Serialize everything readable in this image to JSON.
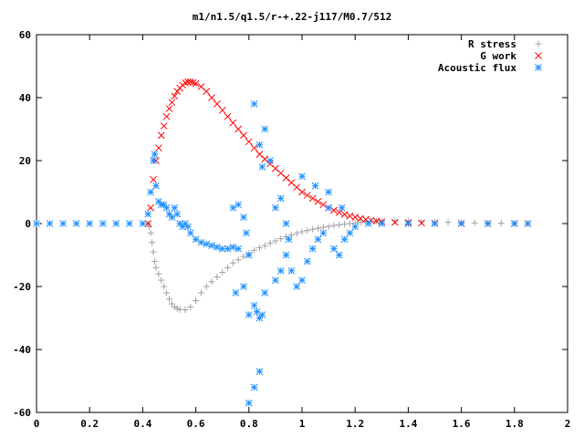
{
  "chart_data": {
    "type": "scatter",
    "title": "m1/n1.5/q1.5/r-+.22-j117/M0.7/512",
    "xlabel": "",
    "ylabel": "",
    "xlim": [
      0,
      2
    ],
    "ylim": [
      -60,
      60
    ],
    "xticks": [
      0,
      0.2,
      0.4,
      0.6,
      0.8,
      1,
      1.2,
      1.4,
      1.6,
      1.8,
      2
    ],
    "xtick_labels": [
      "0",
      "0.2",
      "0.4",
      "0.6",
      "0.8",
      "1",
      "1.2",
      "1.4",
      "1.6",
      "1.8",
      "2"
    ],
    "yticks": [
      -60,
      -40,
      -20,
      0,
      20,
      40,
      60
    ],
    "ytick_labels": [
      "-60",
      "-40",
      "-20",
      "0",
      "20",
      "40",
      "60"
    ],
    "grid": false,
    "legend_position": "top-right",
    "series": [
      {
        "name": "R stress",
        "marker": "plus",
        "color": "#a0a0a0",
        "points": [
          [
            0.42,
            0
          ],
          [
            0.425,
            -1
          ],
          [
            0.43,
            -3
          ],
          [
            0.435,
            -6
          ],
          [
            0.44,
            -9
          ],
          [
            0.445,
            -12
          ],
          [
            0.45,
            -14
          ],
          [
            0.46,
            -16
          ],
          [
            0.47,
            -18
          ],
          [
            0.48,
            -20
          ],
          [
            0.49,
            -22
          ],
          [
            0.5,
            -24
          ],
          [
            0.51,
            -25.5
          ],
          [
            0.52,
            -26.5
          ],
          [
            0.53,
            -27
          ],
          [
            0.54,
            -27.3
          ],
          [
            0.56,
            -27.4
          ],
          [
            0.58,
            -26.5
          ],
          [
            0.6,
            -24.5
          ],
          [
            0.62,
            -22
          ],
          [
            0.64,
            -20
          ],
          [
            0.66,
            -18.5
          ],
          [
            0.68,
            -17
          ],
          [
            0.7,
            -15.5
          ],
          [
            0.72,
            -14
          ],
          [
            0.74,
            -12.5
          ],
          [
            0.76,
            -11.5
          ],
          [
            0.78,
            -10.5
          ],
          [
            0.8,
            -9.5
          ],
          [
            0.82,
            -8.5
          ],
          [
            0.84,
            -7.7
          ],
          [
            0.86,
            -7
          ],
          [
            0.88,
            -6.2
          ],
          [
            0.9,
            -5.5
          ],
          [
            0.92,
            -4.8
          ],
          [
            0.94,
            -4.2
          ],
          [
            0.96,
            -3.6
          ],
          [
            0.98,
            -3.1
          ],
          [
            1.0,
            -2.6
          ],
          [
            1.02,
            -2.2
          ],
          [
            1.04,
            -1.8
          ],
          [
            1.06,
            -1.5
          ],
          [
            1.08,
            -1.2
          ],
          [
            1.1,
            -0.9
          ],
          [
            1.12,
            -0.6
          ],
          [
            1.14,
            -0.4
          ],
          [
            1.16,
            -0.2
          ],
          [
            1.18,
            0
          ],
          [
            1.2,
            0.2
          ],
          [
            1.22,
            0.4
          ],
          [
            1.24,
            0.6
          ],
          [
            1.26,
            0.7
          ],
          [
            1.28,
            0.8
          ],
          [
            1.3,
            0.8
          ],
          [
            1.35,
            0.8
          ],
          [
            1.4,
            0.7
          ],
          [
            1.45,
            0.6
          ],
          [
            1.5,
            0.5
          ],
          [
            1.55,
            0.4
          ],
          [
            1.6,
            0.3
          ],
          [
            1.65,
            0.2
          ],
          [
            1.7,
            0.15
          ],
          [
            1.75,
            0.1
          ],
          [
            1.8,
            0.05
          ],
          [
            1.85,
            0
          ]
        ]
      },
      {
        "name": "G work",
        "marker": "cross",
        "color": "#ff0000",
        "points": [
          [
            0.42,
            0
          ],
          [
            0.43,
            5
          ],
          [
            0.44,
            14
          ],
          [
            0.45,
            20
          ],
          [
            0.46,
            24
          ],
          [
            0.47,
            28
          ],
          [
            0.48,
            31
          ],
          [
            0.49,
            34
          ],
          [
            0.5,
            36.5
          ],
          [
            0.51,
            38.5
          ],
          [
            0.52,
            40.5
          ],
          [
            0.53,
            42
          ],
          [
            0.54,
            43
          ],
          [
            0.55,
            44
          ],
          [
            0.56,
            44.7
          ],
          [
            0.57,
            45
          ],
          [
            0.58,
            45
          ],
          [
            0.59,
            44.8
          ],
          [
            0.6,
            44.5
          ],
          [
            0.62,
            43.5
          ],
          [
            0.64,
            42
          ],
          [
            0.66,
            40
          ],
          [
            0.68,
            38
          ],
          [
            0.7,
            36
          ],
          [
            0.72,
            34
          ],
          [
            0.74,
            32
          ],
          [
            0.76,
            30
          ],
          [
            0.78,
            28
          ],
          [
            0.8,
            26
          ],
          [
            0.82,
            24
          ],
          [
            0.84,
            22
          ],
          [
            0.86,
            20.5
          ],
          [
            0.88,
            19
          ],
          [
            0.9,
            17.5
          ],
          [
            0.92,
            16
          ],
          [
            0.94,
            14.5
          ],
          [
            0.96,
            13
          ],
          [
            0.98,
            11.5
          ],
          [
            1.0,
            10
          ],
          [
            1.02,
            9
          ],
          [
            1.04,
            8
          ],
          [
            1.06,
            7
          ],
          [
            1.08,
            6
          ],
          [
            1.1,
            5
          ],
          [
            1.12,
            4.2
          ],
          [
            1.14,
            3.5
          ],
          [
            1.16,
            2.9
          ],
          [
            1.18,
            2.4
          ],
          [
            1.2,
            2
          ],
          [
            1.22,
            1.6
          ],
          [
            1.24,
            1.3
          ],
          [
            1.26,
            1
          ],
          [
            1.28,
            0.8
          ],
          [
            1.3,
            0.6
          ],
          [
            1.35,
            0.4
          ],
          [
            1.4,
            0.3
          ],
          [
            1.45,
            0.2
          ],
          [
            1.5,
            0.1
          ],
          [
            1.6,
            0.05
          ],
          [
            1.7,
            0
          ],
          [
            1.8,
            0
          ],
          [
            1.85,
            0
          ]
        ]
      },
      {
        "name": "Acoustic flux",
        "marker": "star",
        "color": "#1e90ff",
        "points": [
          [
            0,
            0
          ],
          [
            0.05,
            0
          ],
          [
            0.1,
            0
          ],
          [
            0.15,
            0
          ],
          [
            0.2,
            0
          ],
          [
            0.25,
            0
          ],
          [
            0.3,
            0
          ],
          [
            0.35,
            0
          ],
          [
            0.4,
            0
          ],
          [
            0.42,
            3
          ],
          [
            0.43,
            10
          ],
          [
            0.44,
            20
          ],
          [
            0.445,
            22
          ],
          [
            0.45,
            12
          ],
          [
            0.46,
            7
          ],
          [
            0.47,
            6
          ],
          [
            0.48,
            6
          ],
          [
            0.49,
            5
          ],
          [
            0.5,
            3
          ],
          [
            0.51,
            2
          ],
          [
            0.52,
            5
          ],
          [
            0.53,
            3
          ],
          [
            0.54,
            0
          ],
          [
            0.55,
            -1
          ],
          [
            0.56,
            0
          ],
          [
            0.57,
            -1
          ],
          [
            0.58,
            -3
          ],
          [
            0.6,
            -5
          ],
          [
            0.62,
            -6
          ],
          [
            0.64,
            -6.5
          ],
          [
            0.66,
            -7
          ],
          [
            0.68,
            -7.5
          ],
          [
            0.7,
            -8
          ],
          [
            0.72,
            -8
          ],
          [
            0.74,
            -7.5
          ],
          [
            0.76,
            -8
          ],
          [
            0.74,
            5
          ],
          [
            0.76,
            6
          ],
          [
            0.78,
            2
          ],
          [
            0.79,
            -3
          ],
          [
            0.8,
            -10
          ],
          [
            0.8,
            -29
          ],
          [
            0.82,
            -26
          ],
          [
            0.83,
            -28
          ],
          [
            0.84,
            -30
          ],
          [
            0.85,
            -29
          ],
          [
            0.82,
            38
          ],
          [
            0.84,
            25
          ],
          [
            0.86,
            30
          ],
          [
            0.85,
            18
          ],
          [
            0.88,
            20
          ],
          [
            0.9,
            5
          ],
          [
            0.92,
            8
          ],
          [
            0.94,
            0
          ],
          [
            0.95,
            -5
          ],
          [
            0.96,
            -15
          ],
          [
            0.98,
            -20
          ],
          [
            1.0,
            -18
          ],
          [
            1.02,
            -12
          ],
          [
            1.04,
            -8
          ],
          [
            1.06,
            -5
          ],
          [
            1.08,
            -3
          ],
          [
            1.1,
            5
          ],
          [
            1.12,
            -8
          ],
          [
            1.14,
            -10
          ],
          [
            1.16,
            -5
          ],
          [
            1.18,
            -3
          ],
          [
            1.2,
            -1
          ],
          [
            0.82,
            -52
          ],
          [
            0.84,
            -47
          ],
          [
            0.8,
            -57
          ],
          [
            0.75,
            -22
          ],
          [
            0.78,
            -20
          ],
          [
            0.86,
            -22
          ],
          [
            0.9,
            -18
          ],
          [
            0.92,
            -15
          ],
          [
            0.94,
            -10
          ],
          [
            1.0,
            15
          ],
          [
            1.05,
            12
          ],
          [
            1.1,
            10
          ],
          [
            1.15,
            5
          ],
          [
            1.25,
            0
          ],
          [
            1.3,
            0
          ],
          [
            1.4,
            0
          ],
          [
            1.5,
            0
          ],
          [
            1.6,
            0
          ],
          [
            1.7,
            0
          ],
          [
            1.8,
            0
          ],
          [
            1.85,
            0
          ]
        ]
      }
    ]
  }
}
